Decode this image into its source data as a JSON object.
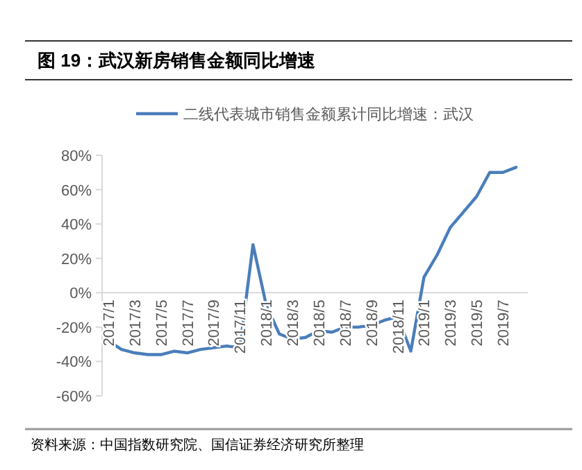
{
  "chart_data": {
    "type": "line",
    "title": "图 19：武汉新房销售金额同比增速",
    "categories": [
      "2017/1",
      null,
      "2017/3",
      null,
      "2017/5",
      null,
      "2017/7",
      null,
      "2017/9",
      null,
      "2017/11",
      null,
      "2018/1",
      null,
      "2018/3",
      null,
      "2018/5",
      null,
      "2018/7",
      null,
      "2018/9",
      null,
      "2018/11",
      null,
      "2019/1",
      null,
      "2019/3",
      null,
      "2019/5",
      null,
      "2019/7",
      null
    ],
    "series": [
      {
        "name": "二线代表城市销售金额累计同比增速：武汉",
        "color": "#4a7ebb",
        "values": [
          -28,
          -33,
          -35,
          -36,
          -36,
          -34,
          -35,
          -33,
          -32,
          -31,
          -32,
          28,
          -7,
          -24,
          -27,
          -26,
          -22,
          -23,
          -20,
          -20,
          -19,
          -16,
          -14,
          -34,
          9,
          22,
          38,
          47,
          56,
          70,
          70,
          73
        ]
      }
    ],
    "ylim": [
      -60,
      80
    ],
    "yticks": [
      {
        "value": -60,
        "label": "-60%"
      },
      {
        "value": -40,
        "label": "-40%"
      },
      {
        "value": -20,
        "label": "-20%"
      },
      {
        "value": 0,
        "label": "0%"
      },
      {
        "value": 20,
        "label": "20%"
      },
      {
        "value": 40,
        "label": "40%"
      },
      {
        "value": 60,
        "label": "60%"
      },
      {
        "value": 80,
        "label": "80%"
      }
    ],
    "legend": "top",
    "line_style": "solid",
    "annotations": [
      "资料来源：中国指数研究院、国信证券经济研究所整理"
    ]
  }
}
